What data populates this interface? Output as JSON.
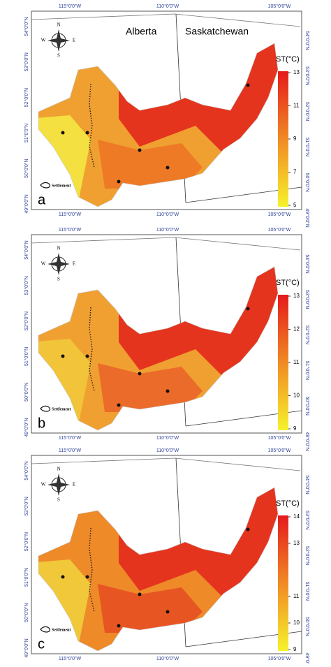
{
  "lon_labels": [
    "115°0'0\"W",
    "110°0'0\"W",
    "105°0'0\"W"
  ],
  "lat_labels": [
    "54°0'0\"N",
    "53°0'0\"N",
    "52°0'0\"N",
    "51°0'0\"N",
    "50°0'0\"N",
    "49°0'0\"N"
  ],
  "compass": {
    "n": "N",
    "s": "S",
    "e": "E",
    "w": "W"
  },
  "settlement_label": "Settlement",
  "provinces": [
    "Alberta",
    "Saskatchewan"
  ],
  "panels": [
    {
      "letter": "a",
      "colorbar_title": "ST(°C)",
      "colorbar_ticks": [
        13,
        11,
        9,
        7,
        5
      ]
    },
    {
      "letter": "b",
      "colorbar_title": "ST(°C)",
      "colorbar_ticks": [
        13,
        12,
        11,
        10,
        9
      ]
    },
    {
      "letter": "c",
      "colorbar_title": "ST(°C)",
      "colorbar_ticks": [
        14,
        13,
        11,
        10,
        9
      ]
    }
  ]
}
